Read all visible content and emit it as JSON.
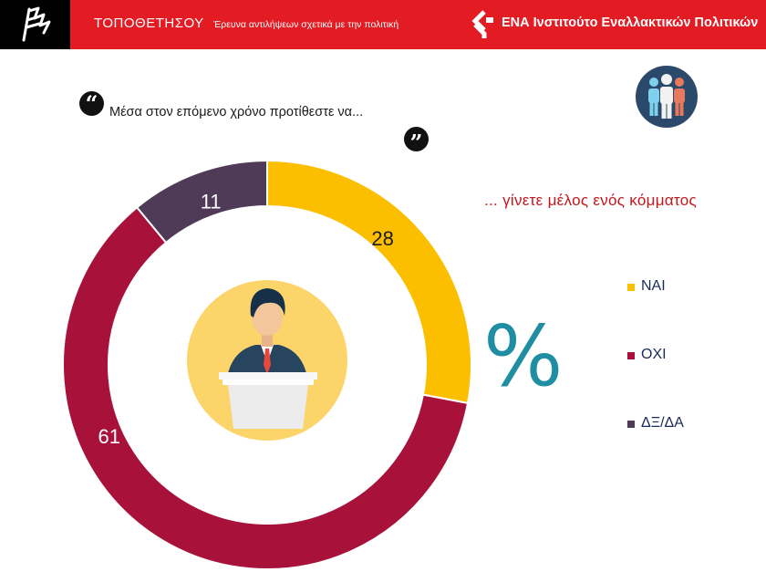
{
  "header": {
    "brand": "ΤΟΠΟΘΕΤΗΣΟΥ",
    "tagline": "Έρευνα αντιλήψεων σχετικά με την πολιτική",
    "org_name": "ΕΝΑ Ινστιτούτο Εναλλακτικών Πολιτικών"
  },
  "question": "Μέσα στον επόμενο χρόνο προτίθεστε να...",
  "percent_symbol": "%",
  "colors": {
    "header_bg": "#e31b23",
    "yes": "#fbbf00",
    "no": "#a8123a",
    "dk_na": "#4f3b57",
    "accent_teal": "#1f8ea3",
    "subtitle": "#c4161c"
  },
  "icons": {
    "top_left_logo": "flag-logo-icon",
    "org_logo": "ena-logo-icon",
    "quote_open": "quote-open-icon",
    "quote_close": "quote-close-icon",
    "people": "people-group-icon",
    "speaker": "speaker-podium-icon"
  },
  "chart_data": {
    "type": "pie",
    "subtitle": "... γίνετε μέλος ενός κόμματος",
    "categories": [
      "ΝΑΙ",
      "ΟΧΙ",
      "ΔΞ/ΔΑ"
    ],
    "values": [
      28,
      61,
      11
    ],
    "labels": [
      "28",
      "61",
      "11"
    ],
    "colors": [
      "#fbbf00",
      "#a8123a",
      "#4f3b57"
    ],
    "legend_position": "right"
  }
}
